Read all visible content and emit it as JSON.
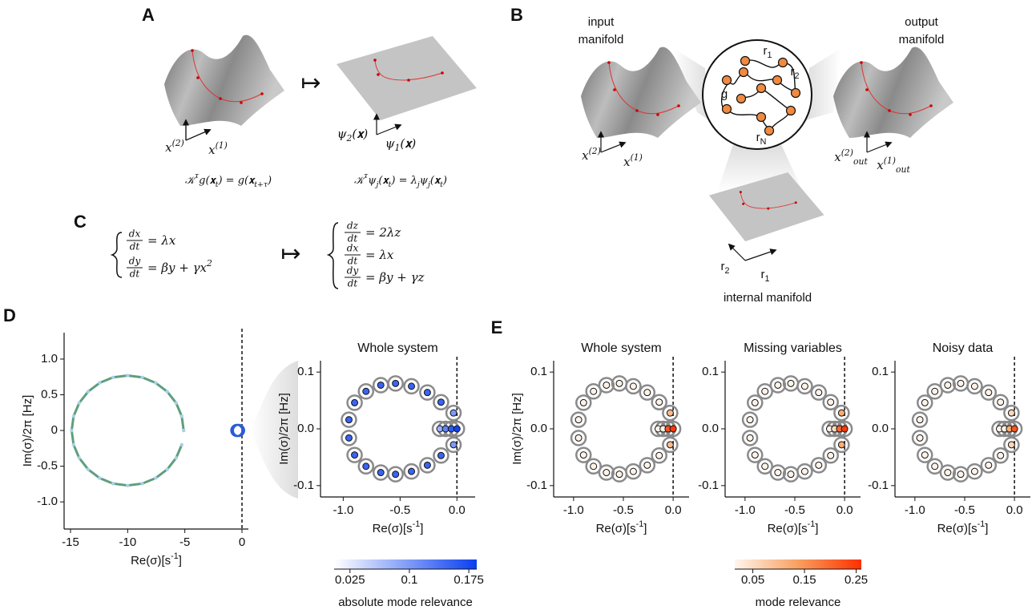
{
  "panel_labels": [
    "A",
    "B",
    "C",
    "D",
    "E"
  ],
  "panel_a": {
    "mapsto": "↦",
    "left_axes": [
      [
        "x",
        {
          "sup": "(2)"
        }
      ],
      [
        "x",
        {
          "sup": "(1)"
        }
      ]
    ],
    "right_axes": [
      [
        "ψ",
        {
          "sub": "2"
        },
        "(𝐱)"
      ],
      [
        "ψ",
        {
          "sub": "1"
        },
        "(𝐱)"
      ]
    ],
    "left_equation": [
      "𝒦",
      {
        "sup": "τ"
      },
      "g(𝐱",
      {
        "sub": "t"
      },
      ") = g(𝐱",
      {
        "sub": "t+τ"
      },
      ")"
    ],
    "right_equation": [
      "𝒦",
      {
        "sup": "τ"
      },
      "ψ",
      {
        "sub": "j"
      },
      "(𝐱",
      {
        "sub": "t"
      },
      ") = λ",
      {
        "sub": "j"
      },
      "ψ",
      {
        "sub": "j"
      },
      "(𝐱",
      {
        "sub": "t"
      },
      ")"
    ]
  },
  "panel_b": {
    "input_title": [
      "input",
      "manifold"
    ],
    "output_title": [
      "output",
      "manifold"
    ],
    "internal_title": "internal manifold",
    "input_axes": [
      [
        "x",
        {
          "sup": "(2)"
        }
      ],
      [
        "x",
        {
          "sup": "(1)"
        }
      ]
    ],
    "output_axes": [
      [
        "x",
        {
          "sup": "(2)"
        },
        {
          "sub": "out"
        }
      ],
      [
        "x",
        {
          "sup": "(1)"
        },
        {
          "sub": "out"
        }
      ]
    ],
    "internal_axes": [
      [
        "r",
        {
          "sub": "2"
        }
      ],
      [
        "r",
        {
          "sub": "1"
        }
      ]
    ],
    "network_labels": [
      [
        "r",
        {
          "sub": "1"
        }
      ],
      [
        "r",
        {
          "sub": "2"
        }
      ],
      [
        "g"
      ],
      [
        "r",
        {
          "sub": "N"
        }
      ]
    ]
  },
  "panel_c": {
    "mapsto": "↦",
    "left_system": [
      {
        "num": "dx",
        "den": "dt",
        "rhs": [
          "= λx"
        ]
      },
      {
        "num": "dy",
        "den": "dt",
        "rhs": [
          "= βy + γx",
          {
            "sup": "2"
          }
        ]
      }
    ],
    "right_system": [
      {
        "num": "dz",
        "den": "dt",
        "rhs": [
          "= 2λz"
        ]
      },
      {
        "num": "dx",
        "den": "dt",
        "rhs": [
          "= λx"
        ]
      },
      {
        "num": "dy",
        "den": "dt",
        "rhs": [
          "= βy + γz"
        ]
      }
    ]
  },
  "colorbars": [
    {
      "label": "absolute mode relevance",
      "lim": [
        0.005,
        0.185
      ],
      "ticks": [
        0.025,
        0.1,
        0.175
      ],
      "colors": [
        "#ffffff",
        "#0a3ff0"
      ]
    },
    {
      "label": "mode relevance",
      "lim": [
        0.015,
        0.26
      ],
      "ticks": [
        0.05,
        0.15,
        0.25
      ],
      "colors": [
        "#fff6ec",
        "#f8a060",
        "#ff3000"
      ]
    }
  ],
  "chart_data": [
    {
      "type": "scatter",
      "xlabel": [
        "Re(σ)[s",
        {
          "sup": "-1"
        },
        "]"
      ],
      "ylabel": "Im(σ)/2π [Hz]",
      "xlim": [
        -15.56,
        0.56
      ],
      "ylim": [
        -1.38,
        1.37
      ],
      "xticks": [
        -15,
        -10,
        -5,
        0
      ],
      "yticks": [
        {
          "value": 1,
          "label": "1.0"
        },
        0.5,
        0,
        -0.5,
        {
          "value": -1,
          "label": "-1.0"
        }
      ],
      "vline": 0,
      "series": [
        {
          "style": "line-points",
          "color": "#5f9e7e",
          "marker_color": "#a9cfe8",
          "x": [
            -5.1,
            -5.27,
            -5.76,
            -6.54,
            -7.55,
            -8.73,
            -10,
            -11.27,
            -12.45,
            -13.46,
            -14.24,
            -14.73,
            -14.9,
            -14.73,
            -14.24,
            -13.46,
            -12.45,
            -11.27,
            -10,
            -8.73,
            -7.55,
            -6.54,
            -5.76,
            -5.27
          ],
          "y": [
            0,
            0.2,
            0.385,
            0.544,
            0.667,
            0.744,
            0.77,
            0.744,
            0.667,
            0.544,
            0.385,
            0.2,
            0,
            -0.2,
            -0.385,
            -0.544,
            -0.667,
            -0.744,
            -0.77,
            -0.744,
            -0.667,
            -0.544,
            -0.385,
            -0.2
          ]
        },
        {
          "style": "blob",
          "color": "#2a5bd7",
          "x": [
            -0.45,
            -0.3
          ],
          "y": [
            0,
            0
          ]
        }
      ]
    },
    {
      "type": "scatter",
      "title": "Whole system",
      "xlabel": [
        "Re(σ)[s",
        {
          "sup": "-1"
        },
        "]"
      ],
      "ylabel": "Im(σ)/2π [Hz]",
      "xlim": [
        -1.2,
        0.16
      ],
      "ylim": [
        -0.12,
        0.12
      ],
      "xticks": [
        {
          "value": -1,
          "label": "-1.0"
        },
        -0.5,
        {
          "value": 0,
          "label": "0.0"
        }
      ],
      "yticks": [
        0.1,
        {
          "value": 0,
          "label": "0.0"
        },
        -0.1
      ],
      "vline": 0,
      "colorbar": 0,
      "series": [
        {
          "style": "modes",
          "ring_color": "#8a8a8a",
          "x": [
            -0.95,
            -0.95,
            -0.9,
            -0.9,
            -0.8,
            -0.8,
            -0.67,
            -0.67,
            -0.54,
            -0.54,
            -0.4,
            -0.4,
            -0.26,
            -0.26,
            -0.14,
            -0.14,
            -0.03,
            -0.03,
            -0.15,
            -0.1,
            -0.05,
            0
          ],
          "y": [
            0.016,
            -0.016,
            0.046,
            -0.046,
            0.066,
            -0.066,
            0.077,
            -0.077,
            0.08,
            -0.08,
            0.075,
            -0.075,
            0.064,
            -0.064,
            0.047,
            -0.047,
            0.028,
            -0.028,
            0,
            0,
            0,
            0
          ],
          "relevance": [
            0.15,
            0.15,
            0.15,
            0.15,
            0.15,
            0.15,
            0.15,
            0.15,
            0.15,
            0.15,
            0.15,
            0.15,
            0.15,
            0.15,
            0.15,
            0.15,
            0.1,
            0.1,
            0.08,
            0.12,
            0.16,
            0.18
          ]
        }
      ]
    },
    {
      "type": "scatter",
      "title": "Whole system",
      "xlabel": [
        "Re(σ)[s",
        {
          "sup": "-1"
        },
        "]"
      ],
      "ylabel": "Im(σ)/2π [Hz]",
      "xlim": [
        -1.2,
        0.16
      ],
      "ylim": [
        -0.12,
        0.12
      ],
      "xticks": [
        {
          "value": -1,
          "label": "-1.0"
        },
        -0.5,
        {
          "value": 0,
          "label": "0.0"
        }
      ],
      "yticks": [
        0.1,
        {
          "value": 0,
          "label": "0.0"
        },
        -0.1
      ],
      "vline": 0,
      "colorbar": 1,
      "series": [
        {
          "style": "modes",
          "ring_color": "#8a8a8a",
          "x": [
            -0.95,
            -0.95,
            -0.9,
            -0.9,
            -0.8,
            -0.8,
            -0.67,
            -0.67,
            -0.54,
            -0.54,
            -0.4,
            -0.4,
            -0.26,
            -0.26,
            -0.14,
            -0.14,
            -0.03,
            -0.03,
            -0.15,
            -0.1,
            -0.05,
            0
          ],
          "y": [
            0.016,
            -0.016,
            0.046,
            -0.046,
            0.066,
            -0.066,
            0.077,
            -0.077,
            0.08,
            -0.08,
            0.075,
            -0.075,
            0.064,
            -0.064,
            0.047,
            -0.047,
            0.028,
            -0.028,
            0,
            0,
            0,
            0
          ],
          "relevance": [
            0.02,
            0.02,
            0.02,
            0.02,
            0.02,
            0.02,
            0.02,
            0.02,
            0.02,
            0.02,
            0.02,
            0.02,
            0.02,
            0.02,
            0.02,
            0.02,
            0.1,
            0.1,
            0.02,
            0.02,
            0.22,
            0.25
          ]
        }
      ]
    },
    {
      "type": "scatter",
      "title": "Missing variables",
      "xlabel": [
        "Re(σ)[s",
        {
          "sup": "-1"
        },
        "]"
      ],
      "xlim": [
        -1.2,
        0.16
      ],
      "ylim": [
        -0.12,
        0.12
      ],
      "xticks": [
        {
          "value": -1,
          "label": "-1.0"
        },
        -0.5,
        {
          "value": 0,
          "label": "0.0"
        }
      ],
      "yticks": [
        0.1,
        {
          "value": 0,
          "label": "0.0"
        },
        -0.1
      ],
      "vline": 0,
      "colorbar": 1,
      "series": [
        {
          "style": "modes",
          "ring_color": "#8a8a8a",
          "x": [
            -0.95,
            -0.95,
            -0.9,
            -0.9,
            -0.8,
            -0.8,
            -0.67,
            -0.67,
            -0.54,
            -0.54,
            -0.4,
            -0.4,
            -0.26,
            -0.26,
            -0.14,
            -0.14,
            -0.03,
            -0.03,
            -0.15,
            -0.1,
            -0.05,
            0
          ],
          "y": [
            0.016,
            -0.016,
            0.046,
            -0.046,
            0.066,
            -0.066,
            0.077,
            -0.077,
            0.08,
            -0.08,
            0.075,
            -0.075,
            0.064,
            -0.064,
            0.047,
            -0.047,
            0.028,
            -0.028,
            0,
            0,
            0,
            0
          ],
          "relevance": [
            0.02,
            0.02,
            0.02,
            0.02,
            0.02,
            0.02,
            0.02,
            0.02,
            0.02,
            0.02,
            0.02,
            0.02,
            0.02,
            0.02,
            0.02,
            0.02,
            0.12,
            0.12,
            0.02,
            0.05,
            0.2,
            0.25
          ]
        }
      ]
    },
    {
      "type": "scatter",
      "title": "Noisy data",
      "xlabel": [
        "Re(σ)[s",
        {
          "sup": "-1"
        },
        "]"
      ],
      "xlim": [
        -1.2,
        0.16
      ],
      "ylim": [
        -0.12,
        0.12
      ],
      "xticks": [
        {
          "value": -1,
          "label": "-1.0"
        },
        -0.5,
        {
          "value": 0,
          "label": "0.0"
        }
      ],
      "yticks": [
        0.1,
        {
          "value": 0,
          "label": "0.0"
        },
        -0.1
      ],
      "vline": 0,
      "colorbar": 1,
      "series": [
        {
          "style": "modes",
          "ring_color": "#8a8a8a",
          "x": [
            -0.95,
            -0.95,
            -0.9,
            -0.9,
            -0.8,
            -0.8,
            -0.67,
            -0.67,
            -0.54,
            -0.54,
            -0.4,
            -0.4,
            -0.26,
            -0.26,
            -0.14,
            -0.14,
            -0.03,
            -0.03,
            -0.15,
            -0.1,
            -0.05,
            0
          ],
          "y": [
            0.016,
            -0.016,
            0.046,
            -0.046,
            0.066,
            -0.066,
            0.077,
            -0.077,
            0.08,
            -0.08,
            0.075,
            -0.075,
            0.064,
            -0.064,
            0.047,
            -0.047,
            0.028,
            -0.028,
            0,
            0,
            0,
            0
          ],
          "relevance": [
            0.02,
            0.02,
            0.02,
            0.02,
            0.02,
            0.02,
            0.02,
            0.02,
            0.02,
            0.02,
            0.02,
            0.02,
            0.02,
            0.02,
            0.02,
            0.02,
            0.06,
            0.06,
            0.02,
            0.02,
            0.12,
            0.22
          ]
        }
      ]
    }
  ]
}
